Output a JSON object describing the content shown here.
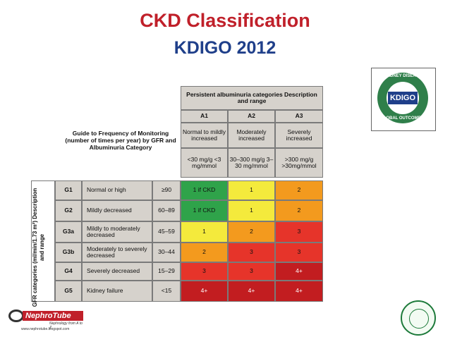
{
  "title": "CKD Classification",
  "subtitle": "KDIGO 2012",
  "logos": {
    "kdigo": {
      "text": "KDIGO",
      "ring_top": "KIDNEY DISEASE",
      "ring_bottom": "GLOBAL OUTCOMES"
    },
    "nephrotube": {
      "text": "NephroTube",
      "tagline": "Nephrology from A to Z",
      "url": "www.nephrotube.blogspot.com"
    }
  },
  "colors": {
    "green": "#2fa34a",
    "yellow": "#f4ea3c",
    "orange": "#f39a1e",
    "red": "#e6342a",
    "dark_red": "#c21d20",
    "title_red": "#c0202a",
    "title_blue": "#1f3f8a"
  },
  "table": {
    "guide": "Guide to Frequency of Monitoring (number of times per year) by GFR and Albuminuria Category",
    "persistent_header": "Persistent albuminuria categories Description and range",
    "gfr_axis": "GFR categories (ml/min/1.73 m²) Description and range",
    "albuminuria": [
      {
        "code": "A1",
        "description": "Normal to mildly increased",
        "range": "<30 mg/g <3 mg/mmol"
      },
      {
        "code": "A2",
        "description": "Moderately increased",
        "range": "30–300 mg/g 3–30 mg/mmol"
      },
      {
        "code": "A3",
        "description": "Severely increased",
        "range": ">300 mg/g >30mg/mmol"
      }
    ],
    "rows": [
      {
        "code": "G1",
        "description": "Normal or high",
        "range": "≥90",
        "values": [
          "1 if CKD",
          "1",
          "2"
        ],
        "colors": [
          "green",
          "yellow",
          "orange"
        ]
      },
      {
        "code": "G2",
        "description": "Mildly decreased",
        "range": "60–89",
        "values": [
          "1 if CKD",
          "1",
          "2"
        ],
        "colors": [
          "green",
          "yellow",
          "orange"
        ]
      },
      {
        "code": "G3a",
        "description": "Mildly to moderately decreased",
        "range": "45–59",
        "values": [
          "1",
          "2",
          "3"
        ],
        "colors": [
          "yellow",
          "orange",
          "red"
        ]
      },
      {
        "code": "G3b",
        "description": "Moderately to severely decreased",
        "range": "30–44",
        "values": [
          "2",
          "3",
          "3"
        ],
        "colors": [
          "orange",
          "red",
          "red"
        ]
      },
      {
        "code": "G4",
        "description": "Severely decreased",
        "range": "15–29",
        "values": [
          "3",
          "3",
          "4+"
        ],
        "colors": [
          "red",
          "red",
          "dark_red"
        ]
      },
      {
        "code": "G5",
        "description": "Kidney failure",
        "range": "<15",
        "values": [
          "4+",
          "4+",
          "4+"
        ],
        "colors": [
          "dark_red",
          "dark_red",
          "dark_red"
        ]
      }
    ]
  }
}
